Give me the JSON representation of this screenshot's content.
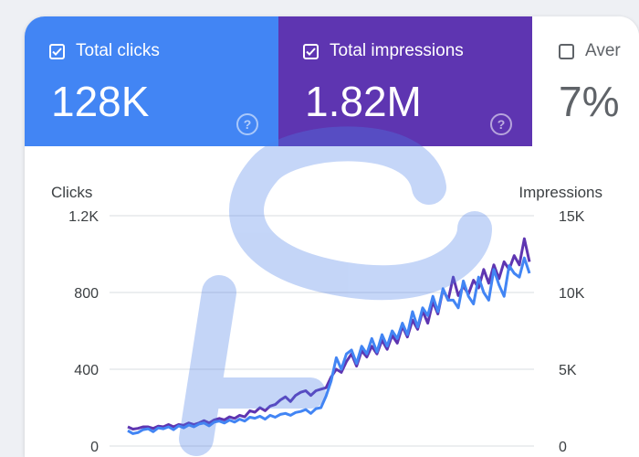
{
  "cards": [
    {
      "label": "Total clicks",
      "value": "128K",
      "checked": true
    },
    {
      "label": "Total impressions",
      "value": "1.82M",
      "checked": true
    },
    {
      "label": "Aver",
      "value": "7%",
      "checked": false
    }
  ],
  "chart_data": {
    "type": "line",
    "grid": true,
    "legend": "none",
    "x_points": 80,
    "y_left": {
      "label": "Clicks",
      "range": [
        0,
        1200
      ],
      "ticks": [
        "0",
        "400",
        "800",
        "1.2K"
      ],
      "tick_values": [
        0,
        400,
        800,
        1200
      ]
    },
    "y_right": {
      "label": "Impressions",
      "range": [
        0,
        15000
      ],
      "ticks": [
        "0",
        "5K",
        "10K",
        "15K"
      ],
      "tick_values": [
        0,
        5000,
        10000,
        15000
      ]
    },
    "series": [
      {
        "axis": "left",
        "color": "#4285f4",
        "values": [
          80,
          65,
          70,
          85,
          90,
          75,
          95,
          90,
          100,
          85,
          105,
          95,
          110,
          100,
          115,
          120,
          105,
          125,
          130,
          120,
          135,
          125,
          140,
          130,
          150,
          145,
          155,
          140,
          160,
          150,
          165,
          170,
          160,
          175,
          180,
          190,
          170,
          195,
          200,
          260,
          340,
          460,
          400,
          480,
          500,
          430,
          520,
          480,
          560,
          490,
          580,
          520,
          600,
          560,
          640,
          580,
          700,
          620,
          720,
          680,
          780,
          700,
          820,
          760,
          760,
          720,
          860,
          780,
          740,
          880,
          800,
          760,
          920,
          840,
          780,
          940,
          900,
          880,
          980,
          900
        ]
      },
      {
        "axis": "right",
        "color": "#5e35b1",
        "values": [
          1250,
          1100,
          1150,
          1250,
          1250,
          1150,
          1300,
          1250,
          1400,
          1250,
          1400,
          1350,
          1500,
          1400,
          1500,
          1650,
          1500,
          1700,
          1800,
          1700,
          1900,
          1800,
          2000,
          1900,
          2300,
          2200,
          2500,
          2300,
          2600,
          2700,
          3000,
          3200,
          2900,
          3300,
          3500,
          3600,
          3300,
          3600,
          3700,
          3800,
          4500,
          5000,
          4800,
          5500,
          6000,
          5200,
          6200,
          5800,
          6500,
          6000,
          6900,
          6300,
          7200,
          6700,
          7800,
          7100,
          8200,
          7600,
          8800,
          8000,
          9400,
          8600,
          10200,
          9500,
          11000,
          9800,
          10400,
          9900,
          10800,
          10300,
          11500,
          10600,
          11800,
          10900,
          12000,
          11500,
          12400,
          11800,
          13500,
          12000
        ]
      }
    ]
  }
}
